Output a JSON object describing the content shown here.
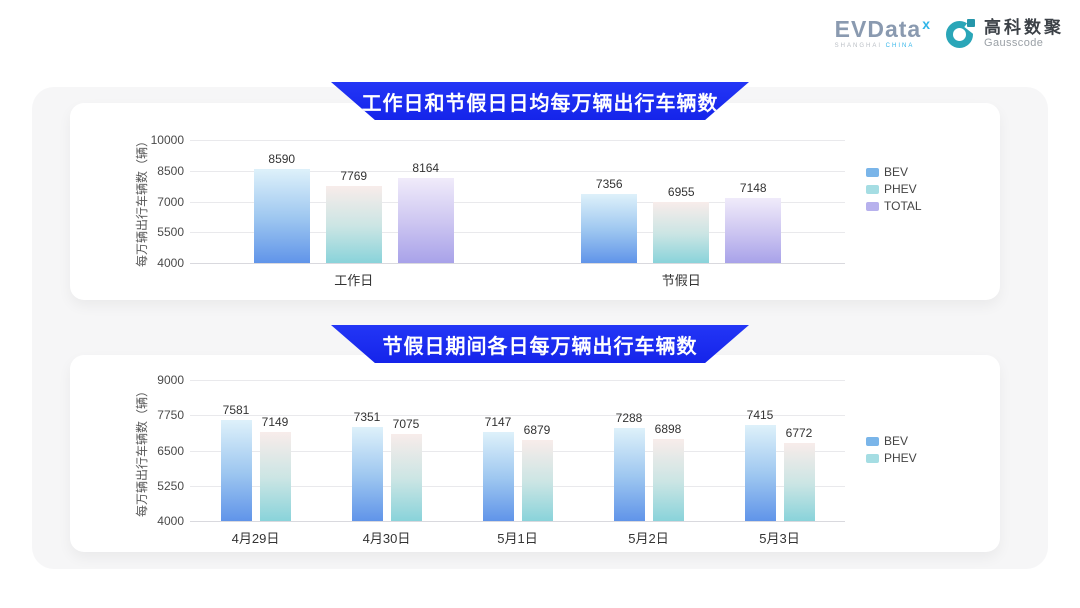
{
  "logo": {
    "brand_text": "EVData",
    "brand_sup": "x",
    "caption_left": "SHANGHAI",
    "caption_right": "CHINA",
    "partner_cn": "高科数聚",
    "partner_en": "Gausscode",
    "brand_color": "#8a9ab0",
    "accent_color": "#2fb5e8",
    "partner_icon_color": "#2aa6b8"
  },
  "banner_color": "#1a2cf0",
  "chart_data": [
    {
      "type": "bar",
      "title": "工作日和节假日日均每万辆出行车辆数",
      "ylabel": "每万辆出行车辆数（辆）",
      "ylim": [
        4000,
        10000
      ],
      "yticks": [
        4000,
        5500,
        7000,
        8500,
        10000
      ],
      "categories": [
        "工作日",
        "节假日"
      ],
      "grid": true,
      "legend_position": "right",
      "series": [
        {
          "name": "BEV",
          "values": [
            8590,
            7356
          ],
          "color_top": "#def1fa",
          "color_mid": "#9ec7f0",
          "color_bottom": "#6094e9",
          "legend_color": "#7ab5e9"
        },
        {
          "name": "PHEV",
          "values": [
            7769,
            6955
          ],
          "color_top": "#f8ecea",
          "color_mid": "#cbe5e4",
          "color_bottom": "#89d3da",
          "legend_color": "#a5dde3"
        },
        {
          "name": "TOTAL",
          "values": [
            8164,
            7148
          ],
          "color_top": "#f0ebfa",
          "color_mid": "#cdc6f1",
          "color_bottom": "#a8a2e9",
          "legend_color": "#b7b1ed"
        }
      ]
    },
    {
      "type": "bar",
      "title": "节假日期间各日每万辆出行车辆数",
      "ylabel": "每万辆出行车辆数（辆）",
      "ylim": [
        4000,
        9000
      ],
      "yticks": [
        4000,
        5250,
        6500,
        7750,
        9000
      ],
      "categories": [
        "4月29日",
        "4月30日",
        "5月1日",
        "5月2日",
        "5月3日"
      ],
      "grid": true,
      "legend_position": "right",
      "series": [
        {
          "name": "BEV",
          "values": [
            7581,
            7351,
            7147,
            7288,
            7415
          ],
          "color_top": "#def1fa",
          "color_mid": "#9ec7f0",
          "color_bottom": "#6094e9",
          "legend_color": "#7ab5e9"
        },
        {
          "name": "PHEV",
          "values": [
            7149,
            7075,
            6879,
            6898,
            6772
          ],
          "color_top": "#f8ecea",
          "color_mid": "#cbe5e4",
          "color_bottom": "#89d3da",
          "legend_color": "#a5dde3"
        }
      ]
    }
  ]
}
